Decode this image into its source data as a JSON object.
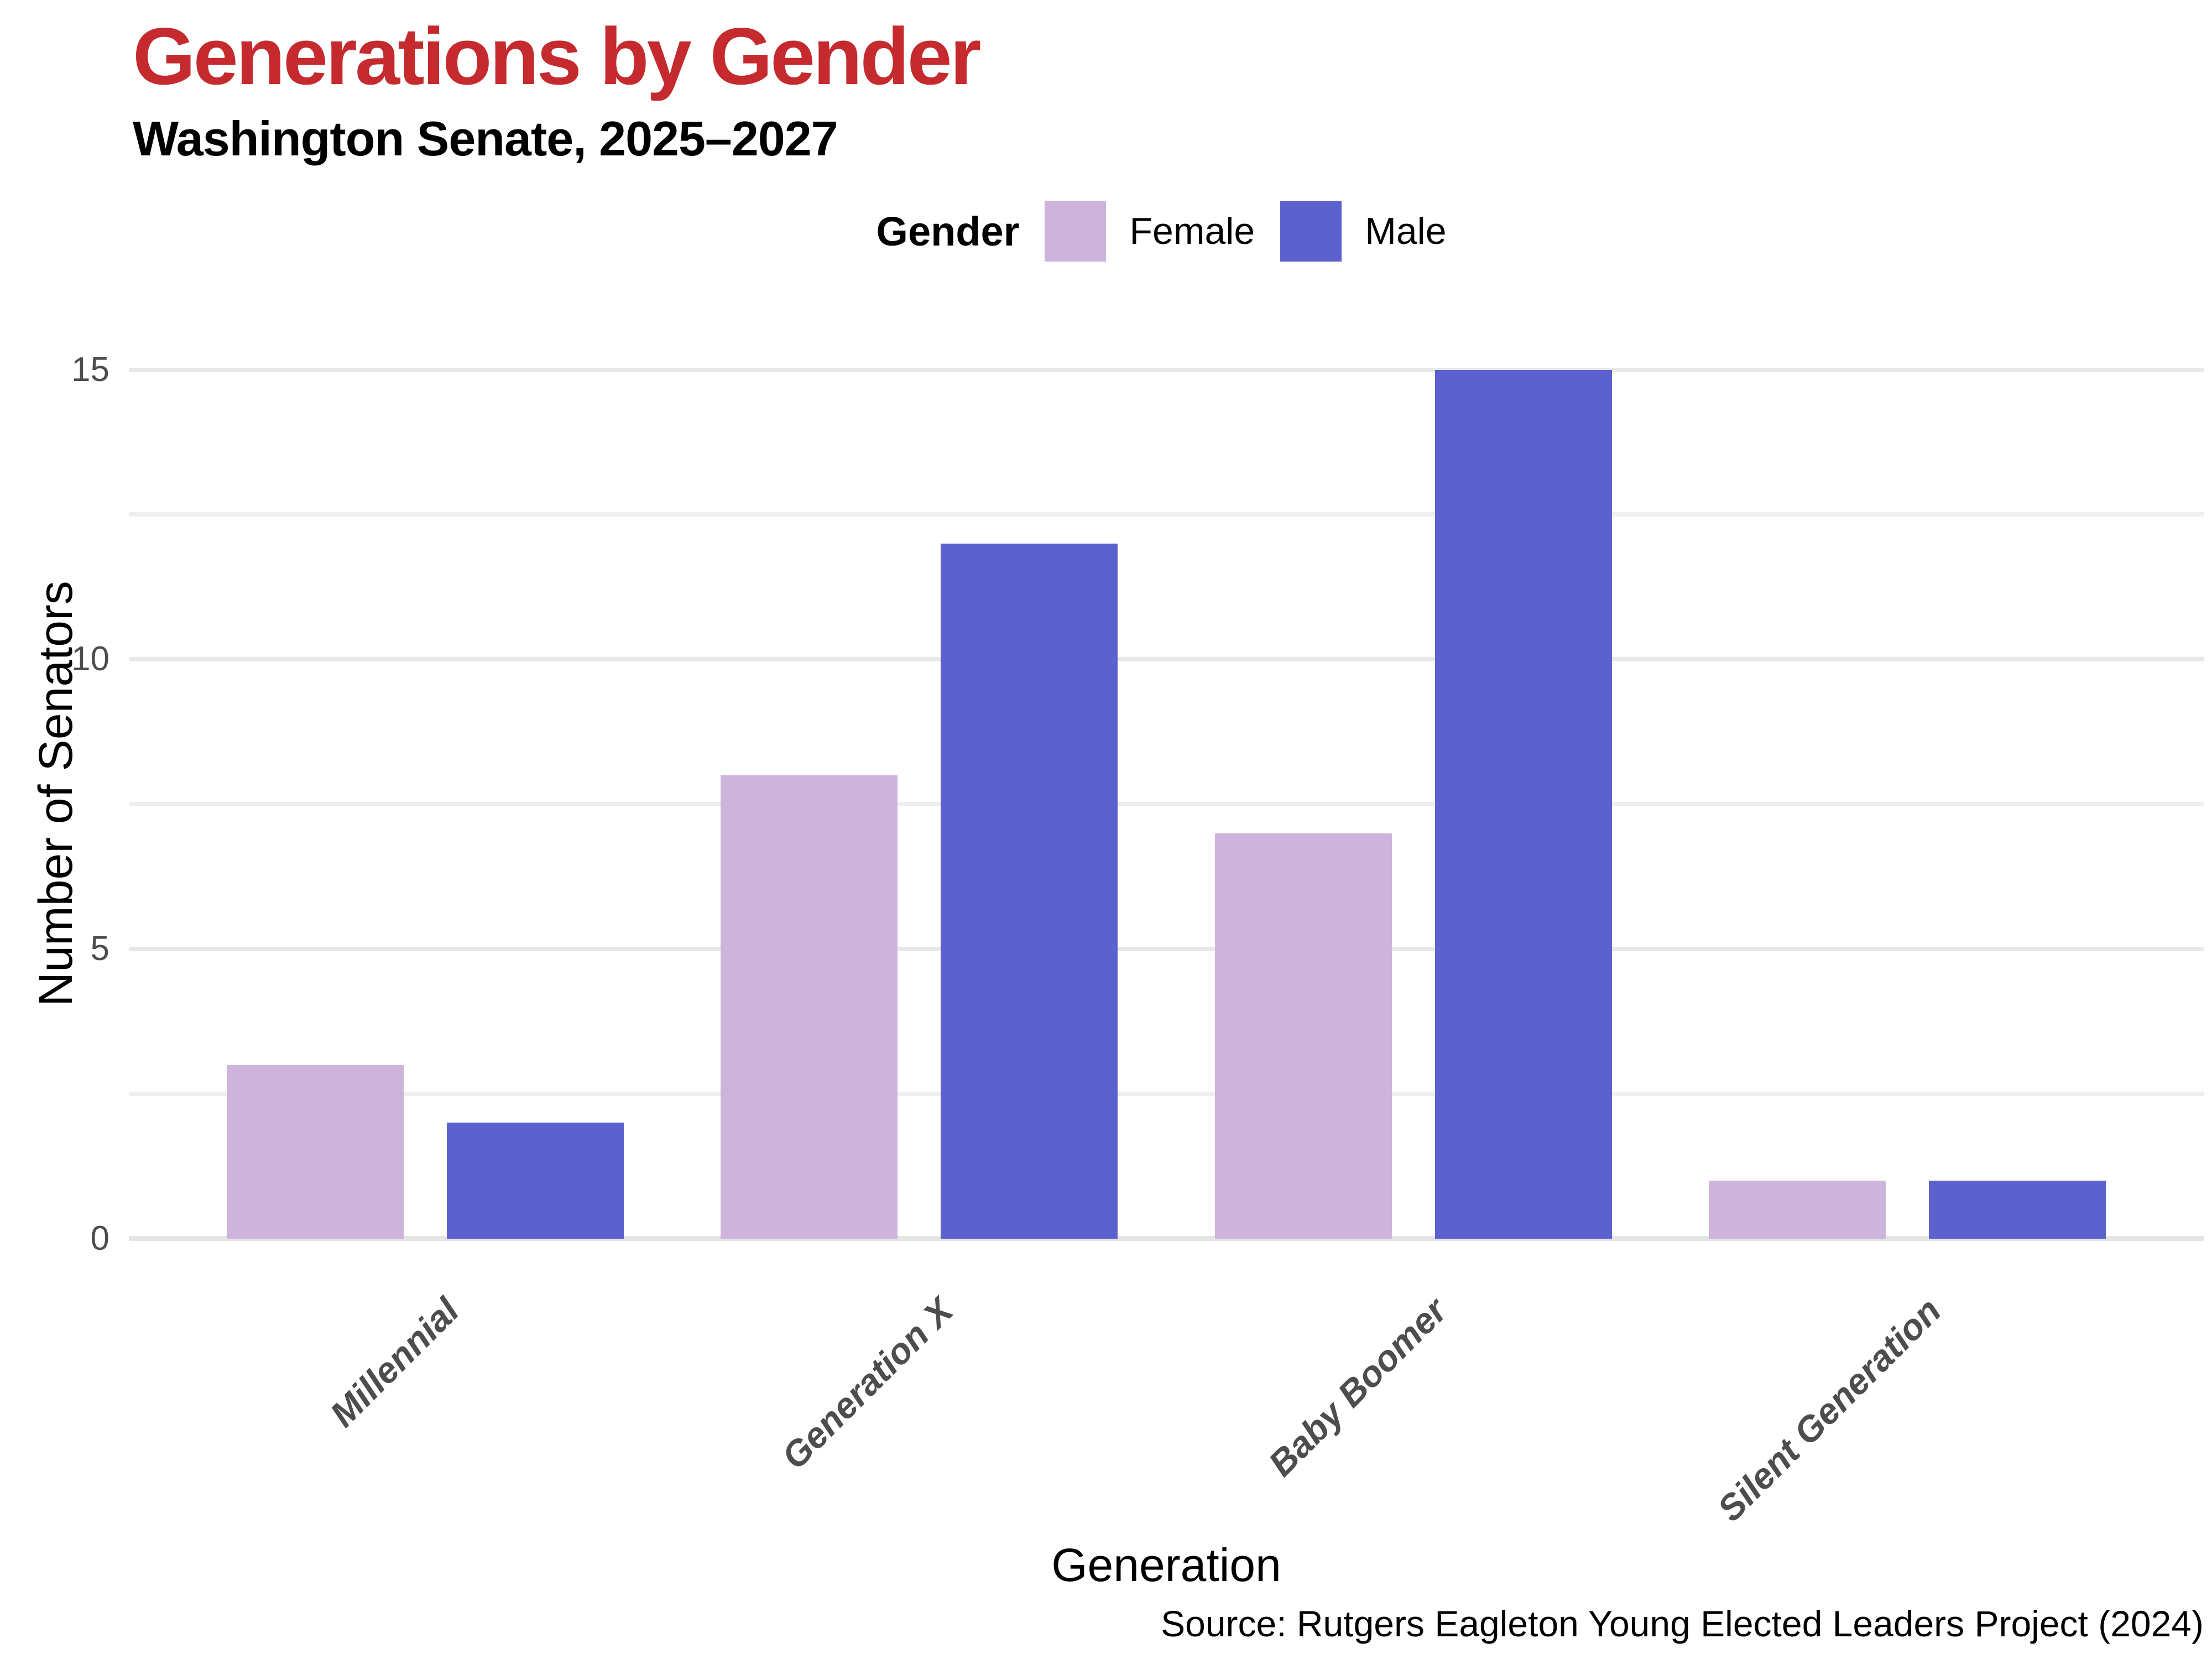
{
  "title": "Generations by Gender",
  "subtitle": "Washington Senate, 2025–2027",
  "legend": {
    "title": "Gender",
    "items": [
      {
        "label": "Female",
        "color": "#CDB4DC"
      },
      {
        "label": "Male",
        "color": "#5C62CD"
      }
    ]
  },
  "chart_data": {
    "type": "bar",
    "title": "Generations by Gender",
    "subtitle": "Washington Senate, 2025–2027",
    "categories": [
      "Millennial",
      "Generation X",
      "Baby Boomer",
      "Silent Generation"
    ],
    "series": [
      {
        "name": "Female",
        "color": "#CDB4DC",
        "values": [
          3,
          8,
          7,
          1
        ]
      },
      {
        "name": "Male",
        "color": "#5C62CD",
        "values": [
          2,
          12,
          15,
          1
        ]
      }
    ],
    "xlabel": "Generation",
    "ylabel": "Number of Senators",
    "ylim": [
      0,
      15.75
    ],
    "yticks": [
      0,
      5,
      10,
      15
    ],
    "grid": true,
    "grid_interval": 2.5,
    "legend_position": "top-center",
    "bar_orientation": "vertical"
  },
  "source_note": "Source: Rutgers Eagleton Young Elected Leaders Project (2024)",
  "colors": {
    "title_accent": "#C52A2E",
    "subtitle_text": "#000000",
    "axis_text": "#4D4D4D",
    "axis_title_text": "#000000",
    "gridline_major": "#E8E8E8",
    "gridline_minor": "#EFEFEF",
    "baseline": "#E5E5E5",
    "background": "#FFFFFF"
  }
}
